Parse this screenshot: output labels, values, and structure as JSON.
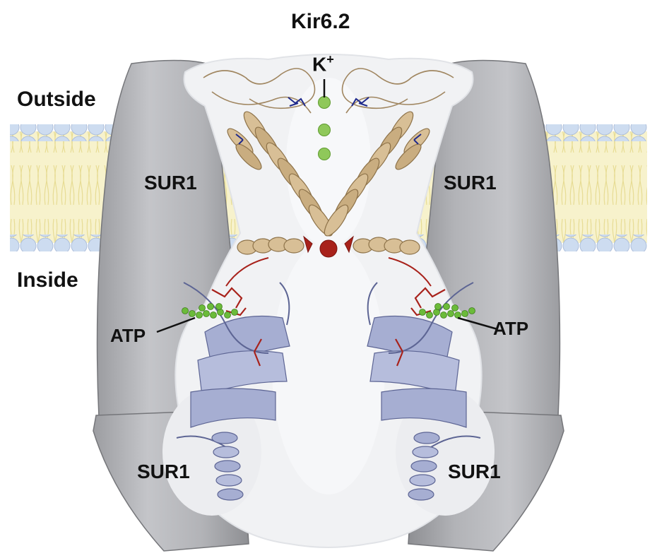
{
  "title": "Kir6.2",
  "labels": {
    "outside": "Outside",
    "inside": "Inside",
    "ion": "K",
    "ion_charge": "+",
    "sur_upper_left": "SUR1",
    "sur_upper_right": "SUR1",
    "sur_lower_left": "SUR1",
    "sur_lower_right": "SUR1",
    "atp_left": "ATP",
    "atp_right": "ATP"
  },
  "colors": {
    "membrane_head": "#c9d9ef",
    "membrane_tail": "#f6f1c6",
    "sur_fill": "#b3b4b8",
    "sur_edge": "#6e6f73",
    "channel_surface": "#f1f2f4",
    "tm_helix": "#d8bf96",
    "cyto_domain": "#a6aed2",
    "atp_ligand": "#6bbb3a",
    "ion": "#8fc85a",
    "residue_red": "#a8221b",
    "residue_blue": "#1f2a8c"
  }
}
